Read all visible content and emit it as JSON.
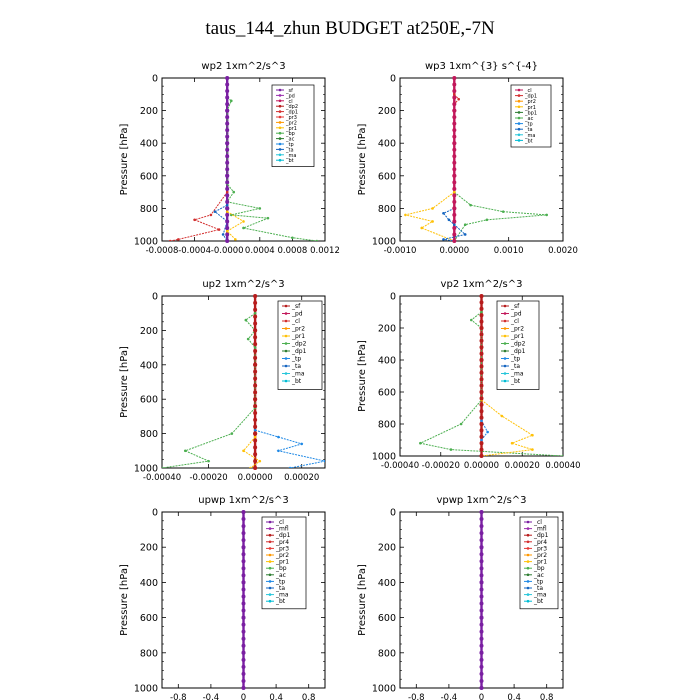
{
  "title": "taus_144_zhun  BUDGET at250E,-7N",
  "panels": [
    {
      "title": "wp2   1xm^2/s^3",
      "ylabel": "Pressure [hPa]",
      "xlim": [
        -0.0008,
        0.0012
      ],
      "ylim": [
        1000,
        0
      ],
      "xticks": [
        "-0.0008",
        "-0.0004",
        "-0.0000",
        "0.0004",
        "0.0008",
        "0.0012"
      ],
      "yticks": [
        "0",
        "200",
        "400",
        "600",
        "800",
        "1000"
      ],
      "legend": [
        {
          "label": "_sf",
          "color": "#7a1fa2"
        },
        {
          "label": "_pd",
          "color": "#9b2fae"
        },
        {
          "label": "_cl",
          "color": "#c2185b"
        },
        {
          "label": "_dp2",
          "color": "#b71c1c"
        },
        {
          "label": "_dp1",
          "color": "#d32f2f"
        },
        {
          "label": "_pr3",
          "color": "#e53935"
        },
        {
          "label": "_pr2",
          "color": "#ff9800"
        },
        {
          "label": "_pr1",
          "color": "#ffc107"
        },
        {
          "label": "_bp",
          "color": "#4caf50"
        },
        {
          "label": "_ac",
          "color": "#2e7d32"
        },
        {
          "label": "_tp",
          "color": "#1e88e5"
        },
        {
          "label": "_ta",
          "color": "#1565c0"
        },
        {
          "label": "_ma",
          "color": "#26c6da"
        },
        {
          "label": "_bt",
          "color": "#00bcd4"
        }
      ],
      "series": [
        {
          "color": "#7a1fa2",
          "points": [
            [
              0,
              0
            ],
            [
              0,
              200
            ],
            [
              0,
              400
            ],
            [
              0,
              600
            ],
            [
              0,
              800
            ],
            [
              0,
              1000
            ]
          ]
        },
        {
          "color": "#4caf50",
          "points": [
            [
              0,
              120
            ],
            [
              5e-05,
              140
            ],
            [
              0,
              200
            ],
            [
              0,
              650
            ],
            [
              8e-05,
              700
            ],
            [
              0,
              760
            ],
            [
              0.0004,
              800
            ],
            [
              5e-05,
              840
            ],
            [
              0.0005,
              860
            ],
            [
              0.0002,
              920
            ],
            [
              0.0008,
              980
            ],
            [
              0.0011,
              1000
            ]
          ]
        },
        {
          "color": "#d32f2f",
          "points": [
            [
              0,
              700
            ],
            [
              -0.0002,
              840
            ],
            [
              -0.0004,
              870
            ],
            [
              -0.0001,
              930
            ],
            [
              -0.0006,
              990
            ],
            [
              -0.0007,
              1000
            ]
          ]
        },
        {
          "color": "#1565c0",
          "points": [
            [
              0,
              780
            ],
            [
              -0.00015,
              820
            ],
            [
              0,
              880
            ],
            [
              -5e-05,
              960
            ],
            [
              0,
              1000
            ]
          ]
        },
        {
          "color": "#ffc107",
          "points": [
            [
              0,
              820
            ],
            [
              0.0002,
              880
            ],
            [
              0,
              940
            ],
            [
              0.0001,
              990
            ]
          ]
        }
      ]
    },
    {
      "title": "wp3   1xm^{3} s^{-4}",
      "ylabel": "Pressure [hPa]",
      "xlim": [
        -0.001,
        0.002
      ],
      "ylim": [
        1000,
        0
      ],
      "xticks": [
        "-0.0010",
        "0.0000",
        "0.0010",
        "0.0020"
      ],
      "yticks": [
        "0",
        "200",
        "400",
        "600",
        "800",
        "1000"
      ],
      "legend": [
        {
          "label": "_cl",
          "color": "#c2185b"
        },
        {
          "label": "_dp1",
          "color": "#d32f2f"
        },
        {
          "label": "_pr2",
          "color": "#ff9800"
        },
        {
          "label": "_pr1",
          "color": "#ffc107"
        },
        {
          "label": "_bp1",
          "color": "#2e7d32"
        },
        {
          "label": "_ac",
          "color": "#4caf50"
        },
        {
          "label": "_tp",
          "color": "#1e88e5"
        },
        {
          "label": "_ta",
          "color": "#1565c0"
        },
        {
          "label": "_ma",
          "color": "#26c6da"
        },
        {
          "label": "_bt",
          "color": "#00bcd4"
        }
      ],
      "series": [
        {
          "color": "#c2185b",
          "points": [
            [
              0,
              0
            ],
            [
              0,
              200
            ],
            [
              0,
              400
            ],
            [
              0,
              600
            ],
            [
              0,
              800
            ],
            [
              0,
              1000
            ]
          ]
        },
        {
          "color": "#d32f2f",
          "points": [
            [
              0,
              100
            ],
            [
              8e-05,
              130
            ],
            [
              0,
              160
            ]
          ]
        },
        {
          "color": "#4caf50",
          "points": [
            [
              0,
              700
            ],
            [
              0.0003,
              780
            ],
            [
              0.0009,
              820
            ],
            [
              0.0017,
              840
            ],
            [
              0.0006,
              870
            ],
            [
              0.0002,
              900
            ],
            [
              0,
              1000
            ]
          ]
        },
        {
          "color": "#ffc107",
          "points": [
            [
              0,
              700
            ],
            [
              -0.0004,
              800
            ],
            [
              -0.0009,
              840
            ],
            [
              -0.0004,
              880
            ],
            [
              -0.0006,
              920
            ],
            [
              0,
              1000
            ]
          ]
        },
        {
          "color": "#1565c0",
          "points": [
            [
              0,
              800
            ],
            [
              -0.0002,
              830
            ],
            [
              -0.0001,
              870
            ],
            [
              0,
              900
            ],
            [
              0.0002,
              960
            ],
            [
              -0.0002,
              990
            ],
            [
              0,
              1000
            ]
          ]
        }
      ]
    },
    {
      "title": "up2   1xm^2/s^3",
      "ylabel": "Pressure [hPa]",
      "xlim": [
        -0.0004,
        0.0003
      ],
      "ylim": [
        1000,
        0
      ],
      "xticks": [
        "-0.00040",
        "-0.00020",
        "0.00000",
        "0.00020"
      ],
      "yticks": [
        "0",
        "200",
        "400",
        "600",
        "800",
        "1000"
      ],
      "legend": [
        {
          "label": "_sf",
          "color": "#b71c1c"
        },
        {
          "label": "_pd",
          "color": "#c2185b"
        },
        {
          "label": "_cl",
          "color": "#d32f2f"
        },
        {
          "label": "_pr2",
          "color": "#ff9800"
        },
        {
          "label": "_pr1",
          "color": "#ffc107"
        },
        {
          "label": "_dp2",
          "color": "#4caf50"
        },
        {
          "label": "_dp1",
          "color": "#2e7d32"
        },
        {
          "label": "_tp",
          "color": "#1e88e5"
        },
        {
          "label": "_ta",
          "color": "#1565c0"
        },
        {
          "label": "_ma",
          "color": "#26c6da"
        },
        {
          "label": "_bt",
          "color": "#00bcd4"
        }
      ],
      "series": [
        {
          "color": "#b71c1c",
          "points": [
            [
              0,
              0
            ],
            [
              0,
              200
            ],
            [
              0,
              400
            ],
            [
              0,
              600
            ],
            [
              0,
              800
            ],
            [
              0,
              1000
            ]
          ]
        },
        {
          "color": "#4caf50",
          "points": [
            [
              0,
              100
            ],
            [
              -4e-05,
              140
            ],
            [
              0,
              200
            ],
            [
              -3e-05,
              250
            ],
            [
              0,
              300
            ],
            [
              0,
              650
            ],
            [
              -0.0001,
              800
            ],
            [
              -0.0003,
              900
            ],
            [
              -0.0002,
              960
            ],
            [
              -0.0004,
              1000
            ]
          ]
        },
        {
          "color": "#1e88e5",
          "points": [
            [
              0,
              780
            ],
            [
              0.0001,
              820
            ],
            [
              0.0002,
              860
            ],
            [
              0.0001,
              900
            ],
            [
              0.0003,
              960
            ],
            [
              0.00015,
              1000
            ]
          ]
        },
        {
          "color": "#ffc107",
          "points": [
            [
              0,
              820
            ],
            [
              -5e-05,
              900
            ],
            [
              2e-05,
              960
            ],
            [
              -2e-05,
              1000
            ]
          ]
        }
      ]
    },
    {
      "title": "vp2   1xm^2/s^3",
      "ylabel": "Pressure [hPa]",
      "xlim": [
        -0.0004,
        0.0004
      ],
      "ylim": [
        1000,
        0
      ],
      "xticks": [
        "-0.00040",
        "-0.00020",
        "0.00000",
        "0.00020",
        "0.00040"
      ],
      "yticks": [
        "0",
        "200",
        "400",
        "600",
        "800",
        "1000"
      ],
      "legend": [
        {
          "label": "_sf",
          "color": "#b71c1c"
        },
        {
          "label": "_pd",
          "color": "#c2185b"
        },
        {
          "label": "_cl",
          "color": "#d32f2f"
        },
        {
          "label": "_pr2",
          "color": "#ff9800"
        },
        {
          "label": "_pr1",
          "color": "#ffc107"
        },
        {
          "label": "_dp2",
          "color": "#4caf50"
        },
        {
          "label": "_dp1",
          "color": "#2e7d32"
        },
        {
          "label": "_tp",
          "color": "#1e88e5"
        },
        {
          "label": "_ta",
          "color": "#1565c0"
        },
        {
          "label": "_ma",
          "color": "#26c6da"
        },
        {
          "label": "_bt",
          "color": "#00bcd4"
        }
      ],
      "series": [
        {
          "color": "#b71c1c",
          "points": [
            [
              0,
              0
            ],
            [
              0,
              200
            ],
            [
              0,
              400
            ],
            [
              0,
              600
            ],
            [
              0,
              800
            ],
            [
              0,
              1000
            ]
          ]
        },
        {
          "color": "#4caf50",
          "points": [
            [
              0,
              100
            ],
            [
              -5e-05,
              150
            ],
            [
              0,
              200
            ],
            [
              0,
              650
            ],
            [
              -0.0001,
              800
            ],
            [
              -0.0003,
              920
            ],
            [
              -0.00015,
              960
            ],
            [
              0.0004,
              1000
            ]
          ]
        },
        {
          "color": "#ffc107",
          "points": [
            [
              0,
              650
            ],
            [
              0.0001,
              750
            ],
            [
              0.00025,
              870
            ],
            [
              0.00015,
              920
            ],
            [
              0.00025,
              960
            ],
            [
              0,
              1000
            ]
          ]
        },
        {
          "color": "#1e88e5",
          "points": [
            [
              0,
              780
            ],
            [
              3e-05,
              850
            ],
            [
              0,
              900
            ]
          ]
        }
      ]
    },
    {
      "title": "upwp   1xm^2/s^3",
      "ylabel": "Pressure [hPa]",
      "xlim": [
        -1,
        1
      ],
      "ylim": [
        1000,
        0
      ],
      "xticks": [
        "-0.8",
        "-0.4",
        "0",
        "0.4",
        "0.8"
      ],
      "yticks": [
        "0",
        "200",
        "400",
        "600",
        "800",
        "1000"
      ],
      "legend": [
        {
          "label": "_cl",
          "color": "#7a1fa2"
        },
        {
          "label": "_mfl",
          "color": "#9b2fae"
        },
        {
          "label": "_dp1",
          "color": "#b71c1c"
        },
        {
          "label": "_pr4",
          "color": "#d32f2f"
        },
        {
          "label": "_pr3",
          "color": "#e53935"
        },
        {
          "label": "_pr2",
          "color": "#ff9800"
        },
        {
          "label": "_pr1",
          "color": "#ffc107"
        },
        {
          "label": "_bp",
          "color": "#4caf50"
        },
        {
          "label": "_ac",
          "color": "#2e7d32"
        },
        {
          "label": "_tp",
          "color": "#1e88e5"
        },
        {
          "label": "_ta",
          "color": "#1565c0"
        },
        {
          "label": "_ma",
          "color": "#26c6da"
        },
        {
          "label": "_bt",
          "color": "#00bcd4"
        }
      ],
      "series": [
        {
          "color": "#7a1fa2",
          "points": [
            [
              0,
              0
            ],
            [
              0,
              200
            ],
            [
              0,
              400
            ],
            [
              0,
              600
            ],
            [
              0,
              800
            ],
            [
              0,
              1000
            ]
          ]
        }
      ]
    },
    {
      "title": "vpwp   1xm^2/s^3",
      "ylabel": "Pressure [hPa]",
      "xlim": [
        -1,
        1
      ],
      "ylim": [
        1000,
        0
      ],
      "xticks": [
        "-0.8",
        "-0.4",
        "0",
        "0.4",
        "0.8"
      ],
      "yticks": [
        "0",
        "200",
        "400",
        "600",
        "800",
        "1000"
      ],
      "legend": [
        {
          "label": "_cl",
          "color": "#7a1fa2"
        },
        {
          "label": "_mfl",
          "color": "#9b2fae"
        },
        {
          "label": "_dp1",
          "color": "#b71c1c"
        },
        {
          "label": "_pr4",
          "color": "#d32f2f"
        },
        {
          "label": "_pr3",
          "color": "#e53935"
        },
        {
          "label": "_pr2",
          "color": "#ff9800"
        },
        {
          "label": "_pr1",
          "color": "#ffc107"
        },
        {
          "label": "_bp",
          "color": "#4caf50"
        },
        {
          "label": "_ac",
          "color": "#2e7d32"
        },
        {
          "label": "_tp",
          "color": "#1e88e5"
        },
        {
          "label": "_ta",
          "color": "#1565c0"
        },
        {
          "label": "_ma",
          "color": "#26c6da"
        },
        {
          "label": "_bt",
          "color": "#00bcd4"
        }
      ],
      "series": [
        {
          "color": "#7a1fa2",
          "points": [
            [
              0,
              0
            ],
            [
              0,
              200
            ],
            [
              0,
              400
            ],
            [
              0,
              600
            ],
            [
              0,
              800
            ],
            [
              0,
              1000
            ]
          ]
        }
      ]
    }
  ],
  "chart_data": [
    {
      "type": "line",
      "title": "wp2   1xm^2/s^3",
      "ylabel": "Pressure [hPa]",
      "xlim": [
        -0.0008,
        0.0012
      ],
      "ylim": [
        1000,
        0
      ]
    },
    {
      "type": "line",
      "title": "wp3   1xm^{3} s^{-4}",
      "ylabel": "Pressure [hPa]",
      "xlim": [
        -0.001,
        0.002
      ],
      "ylim": [
        1000,
        0
      ]
    },
    {
      "type": "line",
      "title": "up2   1xm^2/s^3",
      "ylabel": "Pressure [hPa]",
      "xlim": [
        -0.0004,
        0.0003
      ],
      "ylim": [
        1000,
        0
      ]
    },
    {
      "type": "line",
      "title": "vp2   1xm^2/s^3",
      "ylabel": "Pressure [hPa]",
      "xlim": [
        -0.0004,
        0.0004
      ],
      "ylim": [
        1000,
        0
      ]
    },
    {
      "type": "line",
      "title": "upwp   1xm^2/s^3",
      "ylabel": "Pressure [hPa]",
      "xlim": [
        -1,
        1
      ],
      "ylim": [
        1000,
        0
      ]
    },
    {
      "type": "line",
      "title": "vpwp   1xm^2/s^3",
      "ylabel": "Pressure [hPa]",
      "xlim": [
        -1,
        1
      ],
      "ylim": [
        1000,
        0
      ]
    }
  ]
}
